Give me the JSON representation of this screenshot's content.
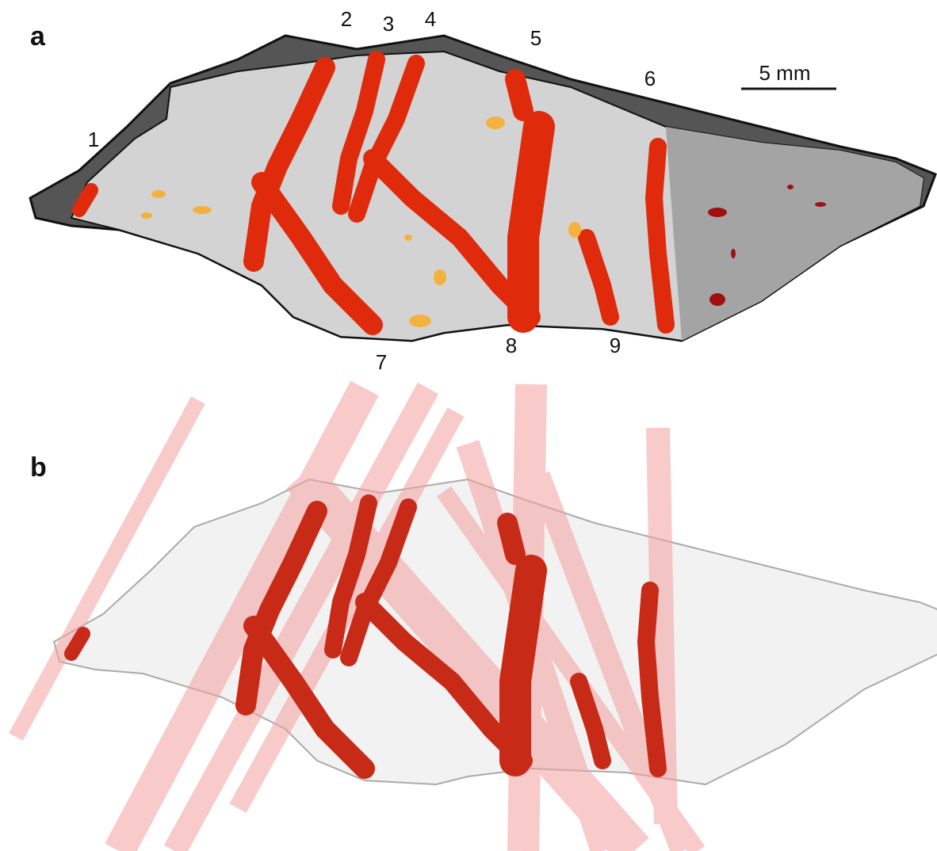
{
  "panel_a": {
    "label": "a",
    "scale_bar": "5 mm",
    "stripe_labels": [
      "1",
      "2",
      "3",
      "4",
      "5",
      "6",
      "7",
      "8",
      "9"
    ]
  },
  "panel_b": {
    "label": "b"
  }
}
